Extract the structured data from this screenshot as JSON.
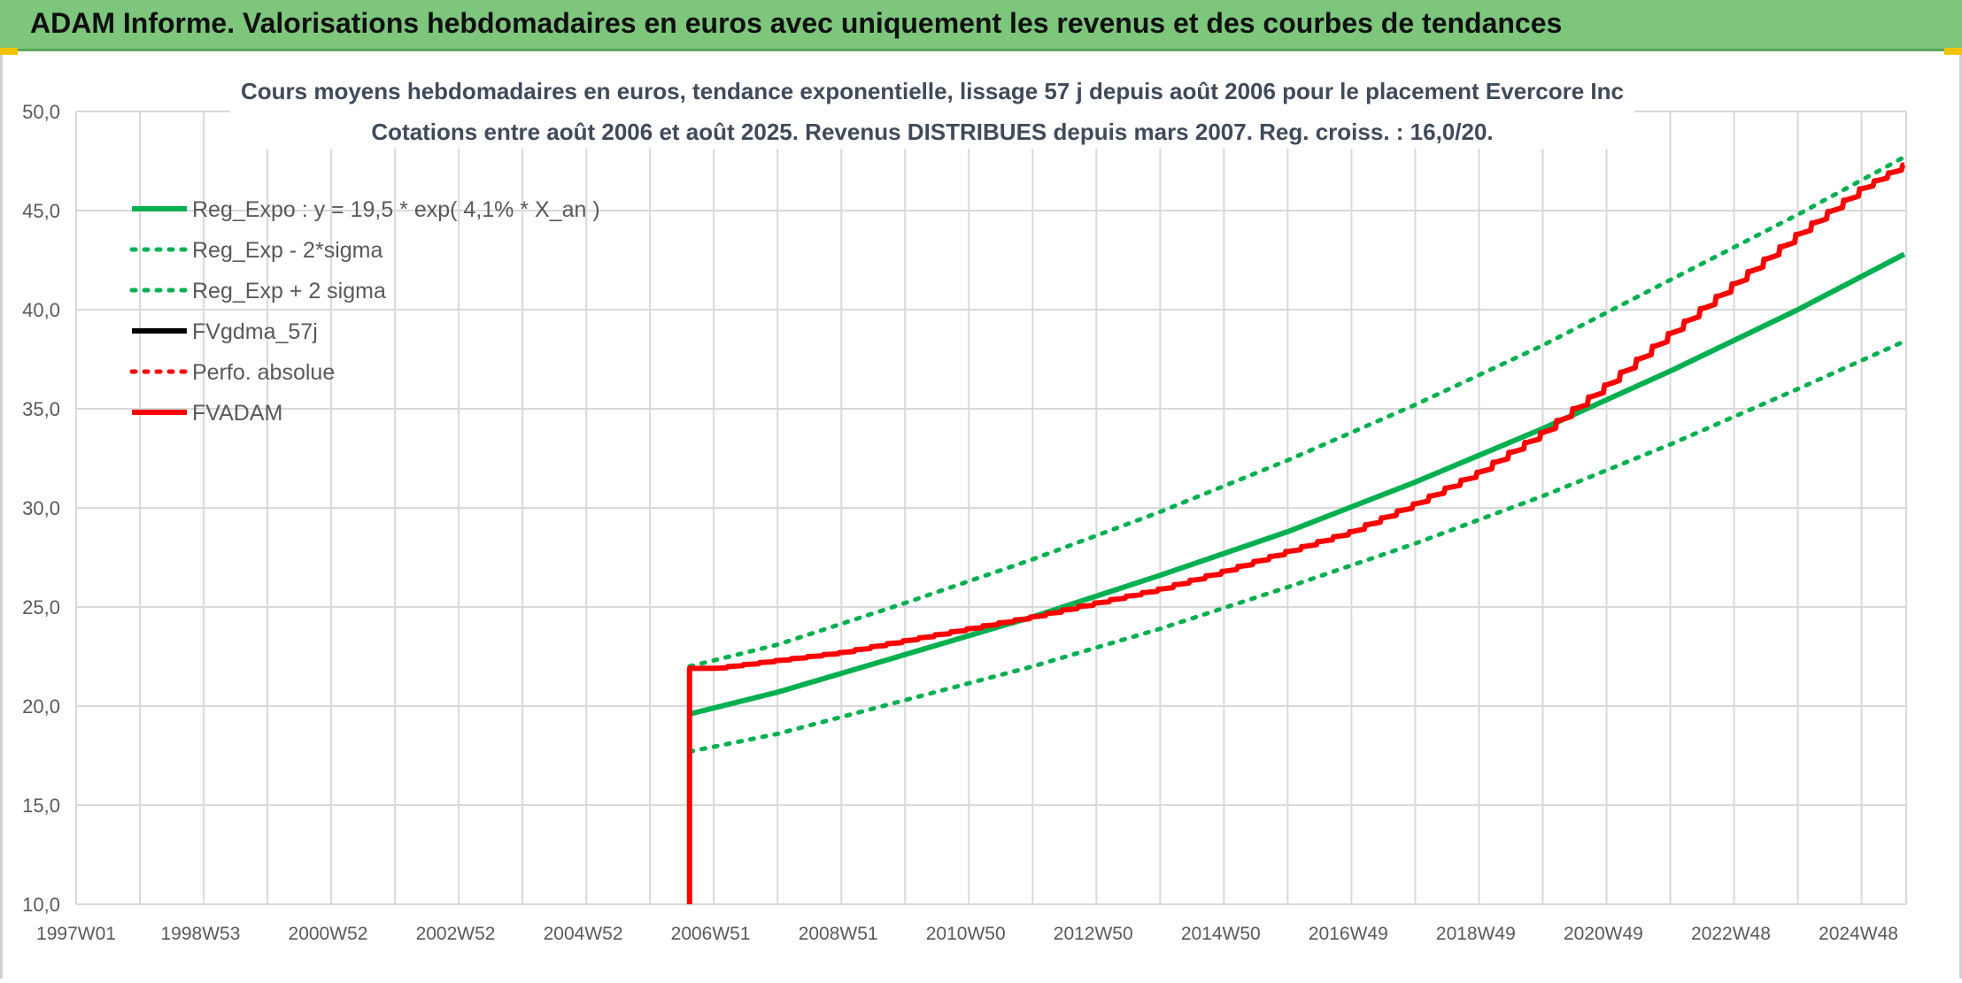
{
  "header": {
    "title": "ADAM Informe. Valorisations hebdomadaires en euros avec uniquement les revenus et des courbes de tendances"
  },
  "chart_data": {
    "type": "line",
    "title": "Cours moyens hebdomadaires en euros, tendance exponentielle, lissage 57 j depuis août 2006 pour le placement Evercore Inc",
    "subtitle": "Cotations entre août 2006 et août 2025. Revenus DISTRIBUES depuis mars 2007. Reg. croiss. : 16,0/20.",
    "x_range": [
      1997.0,
      2025.7
    ],
    "y_range": [
      10.0,
      50.0
    ],
    "y_ticks": [
      10,
      15,
      20,
      25,
      30,
      35,
      40,
      45,
      50
    ],
    "y_tick_labels": [
      "10,0",
      "15,0",
      "20,0",
      "25,0",
      "30,0",
      "35,0",
      "40,0",
      "45,0",
      "50,0"
    ],
    "x_gridlines": [
      1997.0,
      1998.0,
      1999.0,
      2000.0,
      2001.0,
      2002.0,
      2003.0,
      2004.0,
      2005.0,
      2006.0,
      2007.0,
      2008.0,
      2009.0,
      2010.0,
      2011.0,
      2012.0,
      2013.0,
      2014.0,
      2015.0,
      2016.0,
      2017.0,
      2018.0,
      2019.0,
      2020.0,
      2021.0,
      2022.0,
      2023.0,
      2024.0,
      2025.0
    ],
    "x_tick_labels": [
      {
        "x": 1997.0,
        "label": "1997W01"
      },
      {
        "x": 1998.95,
        "label": "1998W53"
      },
      {
        "x": 2000.95,
        "label": "2000W52"
      },
      {
        "x": 2002.95,
        "label": "2002W52"
      },
      {
        "x": 2004.95,
        "label": "2004W52"
      },
      {
        "x": 2006.95,
        "label": "2006W51"
      },
      {
        "x": 2008.95,
        "label": "2008W51"
      },
      {
        "x": 2010.95,
        "label": "2010W50"
      },
      {
        "x": 2012.95,
        "label": "2012W50"
      },
      {
        "x": 2014.95,
        "label": "2014W50"
      },
      {
        "x": 2016.95,
        "label": "2016W49"
      },
      {
        "x": 2018.95,
        "label": "2018W49"
      },
      {
        "x": 2020.95,
        "label": "2020W49"
      },
      {
        "x": 2022.95,
        "label": "2022W48"
      },
      {
        "x": 2024.95,
        "label": "2024W48"
      }
    ],
    "grid": true,
    "legend_position": "top-left",
    "series": [
      {
        "name": "Reg_Expo : y = 19,5 * exp( 4,1% *  X_an )",
        "color": "#00b050",
        "style": "solid",
        "x": [
          2006.62,
          2008.0,
          2010.0,
          2012.0,
          2014.0,
          2016.0,
          2018.0,
          2020.0,
          2022.0,
          2024.0,
          2025.67
        ],
        "values": [
          19.6,
          20.7,
          22.6,
          24.5,
          26.6,
          28.8,
          31.3,
          34.0,
          36.9,
          40.0,
          42.8
        ]
      },
      {
        "name": "Reg_Exp - 2*sigma",
        "color": "#00b050",
        "style": "dotted",
        "x": [
          2006.62,
          2008.0,
          2010.0,
          2012.0,
          2014.0,
          2016.0,
          2018.0,
          2020.0,
          2022.0,
          2024.0,
          2025.67
        ],
        "values": [
          17.7,
          18.6,
          20.3,
          22.0,
          23.9,
          26.0,
          28.2,
          30.6,
          33.2,
          36.0,
          38.4
        ]
      },
      {
        "name": "Reg_Exp + 2 sigma",
        "color": "#00b050",
        "style": "dotted",
        "x": [
          2006.62,
          2008.0,
          2010.0,
          2012.0,
          2014.0,
          2016.0,
          2018.0,
          2020.0,
          2022.0,
          2024.0,
          2025.67
        ],
        "values": [
          22.0,
          23.1,
          25.2,
          27.4,
          29.8,
          32.4,
          35.2,
          38.2,
          41.5,
          44.8,
          47.7
        ]
      },
      {
        "name": "FVgdma_57j",
        "color": "#000000",
        "style": "solid",
        "x": [],
        "values": []
      },
      {
        "name": "Perfo. absolue",
        "color": "#ff0000",
        "style": "dotted",
        "x": [],
        "values": []
      },
      {
        "name": "FVADAM",
        "color": "#ff0000",
        "style": "solid-stepped",
        "x": [
          2006.62,
          2006.62,
          2007.0,
          2008.0,
          2009.0,
          2010.0,
          2011.0,
          2012.0,
          2013.0,
          2014.0,
          2015.0,
          2016.0,
          2017.0,
          2018.0,
          2019.0,
          2020.0,
          2021.0,
          2022.0,
          2023.0,
          2024.0,
          2025.0,
          2025.67
        ],
        "values": [
          10.0,
          21.9,
          21.9,
          22.3,
          22.7,
          23.3,
          23.9,
          24.5,
          25.2,
          25.9,
          26.8,
          27.8,
          28.8,
          30.2,
          31.8,
          33.8,
          36.2,
          38.8,
          41.3,
          43.8,
          46.1,
          47.3
        ]
      }
    ]
  }
}
